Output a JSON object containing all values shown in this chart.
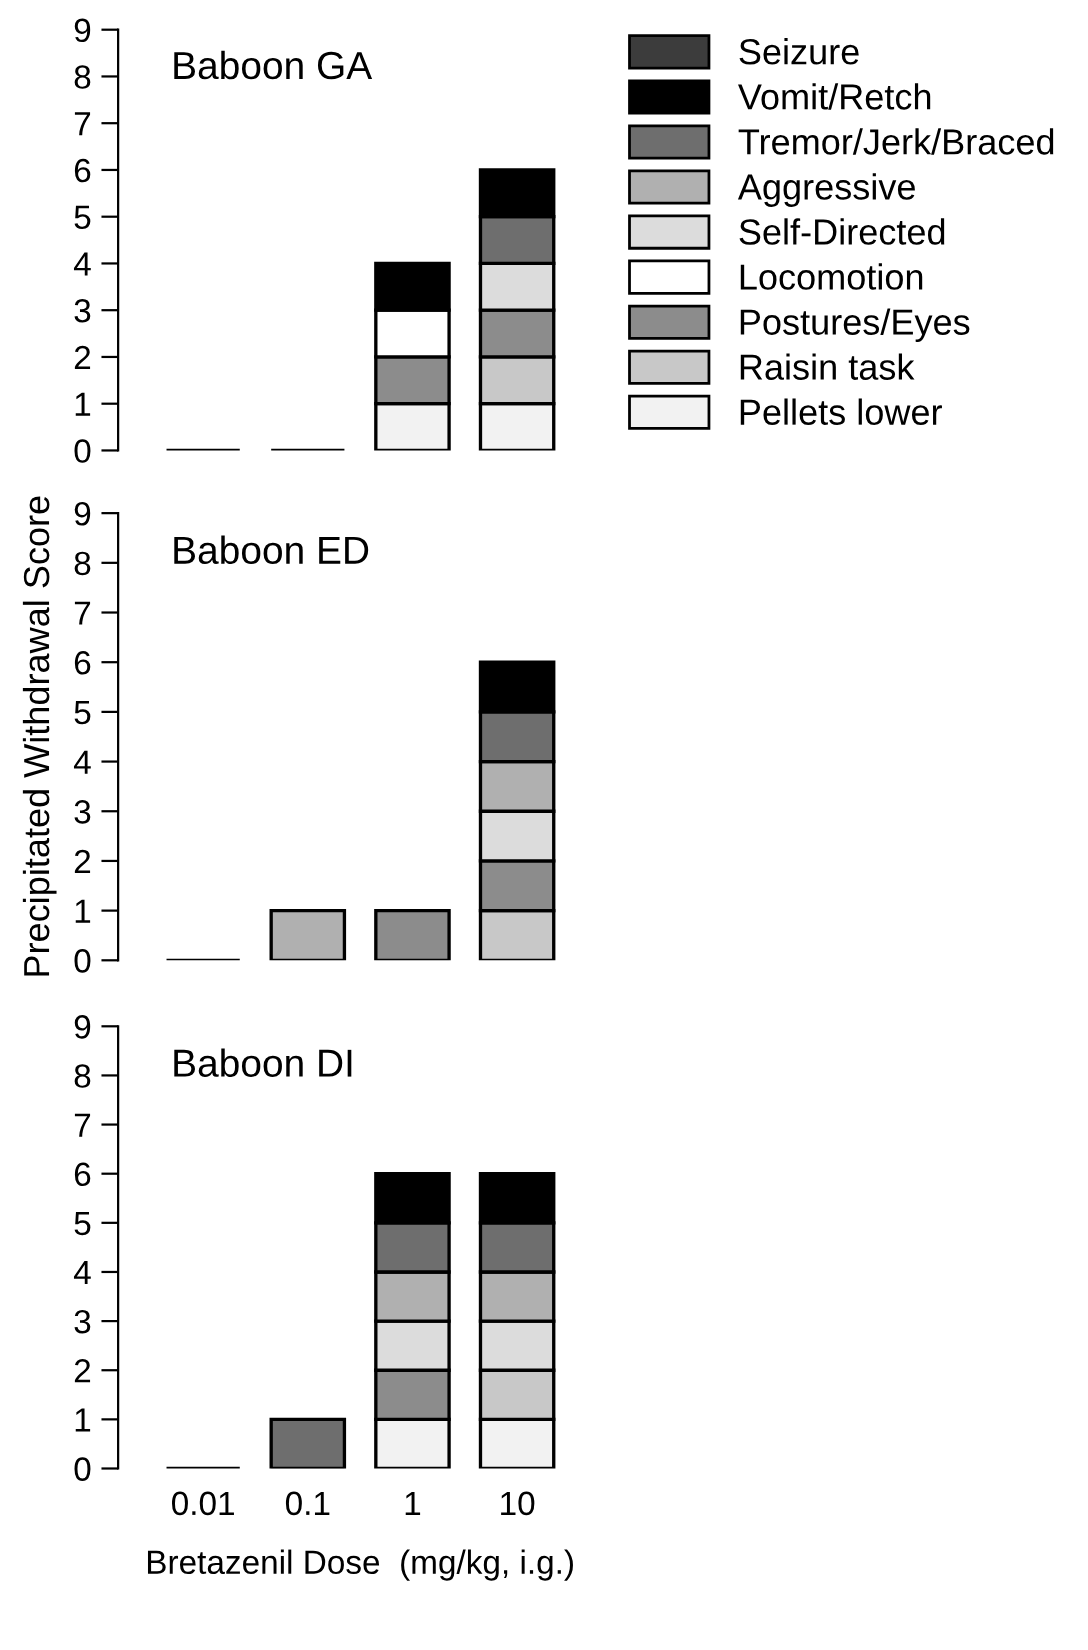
{
  "chart_data": [
    {
      "type": "bar",
      "stacked": true,
      "title": "Baboon GA",
      "categories": [
        "0.01",
        "0.1",
        "1",
        "10"
      ],
      "ylim": [
        0,
        9
      ],
      "yticks": [
        0,
        1,
        2,
        3,
        4,
        5,
        6,
        7,
        8,
        9
      ],
      "tick_labels": "y",
      "legend": "right",
      "grid": false,
      "series": [
        {
          "name": "Pellets lower",
          "color": "#f2f2f2",
          "values": [
            0,
            0,
            1,
            1
          ]
        },
        {
          "name": "Raisin task",
          "color": "#c8c8c8",
          "values": [
            0,
            0,
            0,
            1
          ]
        },
        {
          "name": "Postures/Eyes",
          "color": "#8c8c8c",
          "values": [
            0,
            0,
            1,
            1
          ]
        },
        {
          "name": "Locomotion",
          "color": "#ffffff",
          "values": [
            0,
            0,
            1,
            0
          ]
        },
        {
          "name": "Self-Directed",
          "color": "#dcdcdc",
          "values": [
            0,
            0,
            0,
            1
          ]
        },
        {
          "name": "Aggressive",
          "color": "#b0b0b0",
          "values": [
            0,
            0,
            0,
            0
          ]
        },
        {
          "name": "Tremor/Jerk/Braced",
          "color": "#6e6e6e",
          "values": [
            0,
            0,
            0,
            1
          ]
        },
        {
          "name": "Vomit/Retch",
          "color": "#000000",
          "values": [
            0,
            0,
            1,
            1
          ]
        },
        {
          "name": "Seizure",
          "color": "#3c3c3c",
          "values": [
            0,
            0,
            0,
            0
          ]
        }
      ]
    },
    {
      "type": "bar",
      "stacked": true,
      "title": "Baboon ED",
      "ylabel": "Precipitated Withdrawal Score",
      "categories": [
        "0.01",
        "0.1",
        "1",
        "10"
      ],
      "ylim": [
        0,
        9
      ],
      "yticks": [
        0,
        1,
        2,
        3,
        4,
        5,
        6,
        7,
        8,
        9
      ],
      "tick_labels": "y",
      "grid": false,
      "series": [
        {
          "color": "#f2f2f2",
          "values": [
            0,
            0,
            0,
            0
          ]
        },
        {
          "color": "#c8c8c8",
          "values": [
            0,
            0,
            0,
            1
          ]
        },
        {
          "color": "#8c8c8c",
          "values": [
            0,
            0,
            1,
            1
          ]
        },
        {
          "color": "#ffffff",
          "values": [
            0,
            0,
            0,
            0
          ]
        },
        {
          "color": "#dcdcdc",
          "values": [
            0,
            0,
            0,
            1
          ]
        },
        {
          "color": "#b0b0b0",
          "values": [
            0,
            1,
            0,
            1
          ]
        },
        {
          "color": "#6e6e6e",
          "values": [
            0,
            0,
            0,
            1
          ]
        },
        {
          "color": "#000000",
          "values": [
            0,
            0,
            0,
            1
          ]
        },
        {
          "color": "#3c3c3c",
          "values": [
            0,
            0,
            0,
            0
          ]
        }
      ]
    },
    {
      "type": "bar",
      "stacked": true,
      "title": "Baboon DI",
      "xlabel": "Bretazenil Dose  (mg/kg, i.g.)",
      "categories": [
        "0.01",
        "0.1",
        "1",
        "10"
      ],
      "ylim": [
        0,
        9
      ],
      "yticks": [
        0,
        1,
        2,
        3,
        4,
        5,
        6,
        7,
        8,
        9
      ],
      "grid": false,
      "series": [
        {
          "color": "#f2f2f2",
          "values": [
            0,
            0,
            1,
            1
          ]
        },
        {
          "color": "#c8c8c8",
          "values": [
            0,
            0,
            0,
            1
          ]
        },
        {
          "color": "#8c8c8c",
          "values": [
            0,
            0,
            1,
            0
          ]
        },
        {
          "color": "#ffffff",
          "values": [
            0,
            0,
            0,
            0
          ]
        },
        {
          "color": "#dcdcdc",
          "values": [
            0,
            0,
            1,
            1
          ]
        },
        {
          "color": "#b0b0b0",
          "values": [
            0,
            0,
            1,
            1
          ]
        },
        {
          "color": "#6e6e6e",
          "values": [
            0,
            1,
            1,
            1
          ]
        },
        {
          "color": "#000000",
          "values": [
            0,
            0,
            1,
            1
          ]
        },
        {
          "color": "#3c3c3c",
          "values": [
            0,
            0,
            0,
            0
          ]
        }
      ]
    }
  ]
}
